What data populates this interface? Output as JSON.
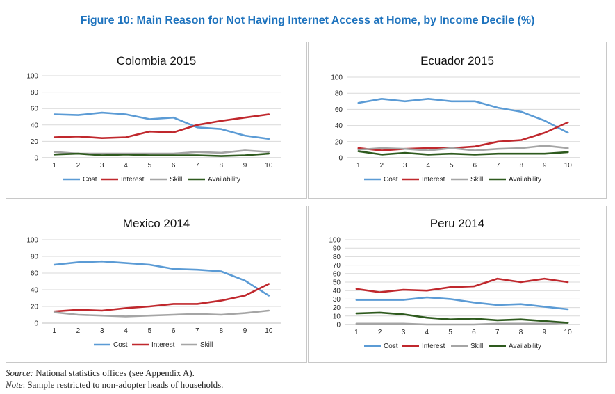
{
  "figure_title": "Figure 10: Main Reason for Not Having Internet Access at Home, by Income Decile (%)",
  "notes": {
    "source_label": "Source:",
    "source_text": " National statistics offices (see Appendix A).",
    "note_label": "Note",
    "note_text": ": Sample restricted to non-adopter heads of households."
  },
  "colors": {
    "Cost": "#5b9bd5",
    "Interest": "#c0282d",
    "Skill": "#a5a5a5",
    "Availability": "#2e5a1e",
    "grid": "#d9d9d9"
  },
  "chart_data": [
    {
      "type": "line",
      "title": "Colombia 2015",
      "x": [
        1,
        2,
        3,
        4,
        5,
        6,
        7,
        8,
        9,
        10
      ],
      "ylim": [
        0,
        100
      ],
      "yticks": [
        0,
        20,
        40,
        60,
        80,
        100
      ],
      "grid": true,
      "legend": "bottom",
      "series": [
        {
          "name": "Cost",
          "values": [
            53,
            52,
            55,
            53,
            47,
            49,
            37,
            35,
            27,
            23
          ]
        },
        {
          "name": "Interest",
          "values": [
            25,
            26,
            24,
            25,
            32,
            31,
            40,
            45,
            49,
            53
          ]
        },
        {
          "name": "Skill",
          "values": [
            7,
            5,
            5,
            5,
            5,
            5,
            7,
            6,
            9,
            7
          ]
        },
        {
          "name": "Availability",
          "values": [
            4,
            5,
            3,
            4,
            3,
            3,
            3,
            2,
            3,
            5
          ]
        }
      ]
    },
    {
      "type": "line",
      "title": "Ecuador 2015",
      "x": [
        1,
        2,
        3,
        4,
        5,
        6,
        7,
        8,
        9,
        10
      ],
      "ylim": [
        0,
        100
      ],
      "yticks": [
        0,
        20,
        40,
        60,
        80,
        100
      ],
      "grid": true,
      "legend": "bottom",
      "series": [
        {
          "name": "Cost",
          "values": [
            68,
            73,
            70,
            73,
            70,
            70,
            62,
            57,
            46,
            31
          ]
        },
        {
          "name": "Interest",
          "values": [
            12,
            9,
            11,
            12,
            12,
            14,
            20,
            22,
            31,
            44
          ]
        },
        {
          "name": "Skill",
          "values": [
            10,
            12,
            11,
            9,
            12,
            9,
            11,
            12,
            15,
            12
          ]
        },
        {
          "name": "Availability",
          "values": [
            8,
            4,
            6,
            4,
            5,
            4,
            5,
            5,
            5,
            7
          ]
        }
      ]
    },
    {
      "type": "line",
      "title": "Mexico 2014",
      "x": [
        1,
        2,
        3,
        4,
        5,
        6,
        7,
        8,
        9,
        10
      ],
      "ylim": [
        0,
        100
      ],
      "yticks": [
        0,
        20,
        40,
        60,
        80,
        100
      ],
      "grid": true,
      "legend": "bottom",
      "series": [
        {
          "name": "Cost",
          "values": [
            70,
            73,
            74,
            72,
            70,
            65,
            64,
            62,
            51,
            33
          ]
        },
        {
          "name": "Interest",
          "values": [
            14,
            16,
            15,
            18,
            20,
            23,
            23,
            27,
            33,
            47
          ]
        },
        {
          "name": "Skill",
          "values": [
            13,
            10,
            9,
            8,
            9,
            10,
            11,
            10,
            12,
            15
          ]
        }
      ]
    },
    {
      "type": "line",
      "title": "Peru 2014",
      "x": [
        1,
        2,
        3,
        4,
        5,
        6,
        7,
        8,
        9,
        10
      ],
      "ylim": [
        0,
        100
      ],
      "yticks": [
        0,
        10,
        20,
        30,
        40,
        50,
        60,
        70,
        80,
        90,
        100
      ],
      "grid": true,
      "legend": "bottom",
      "series": [
        {
          "name": "Cost",
          "values": [
            29,
            29,
            29,
            32,
            30,
            26,
            23,
            24,
            21,
            18
          ]
        },
        {
          "name": "Interest",
          "values": [
            42,
            38,
            41,
            40,
            44,
            45,
            54,
            50,
            54,
            50
          ]
        },
        {
          "name": "Skill",
          "values": [
            1,
            1,
            1,
            0,
            0,
            0,
            1,
            1,
            1,
            2
          ]
        },
        {
          "name": "Availability",
          "values": [
            13,
            14,
            12,
            8,
            6,
            7,
            5,
            6,
            4,
            2
          ]
        }
      ]
    }
  ]
}
